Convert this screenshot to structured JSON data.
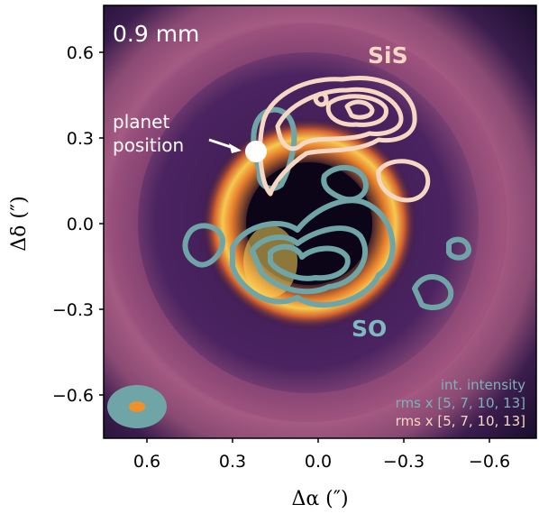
{
  "figure": {
    "wavelength_label": "0.9 mm",
    "planet_label_line1": "planet",
    "planet_label_line2": "position",
    "sis_label": "SiS",
    "so_label": "SO",
    "legend": {
      "title": "int. intensity",
      "so_levels": "rms x [5, 7, 10, 13]",
      "sis_levels": "rms x [5, 7, 10, 13]"
    },
    "x_axis": {
      "label": "Δα (″)",
      "ticks": [
        "0.6",
        "0.3",
        "0.0",
        "−0.3",
        "−0.6"
      ]
    },
    "y_axis": {
      "label": "Δδ (″)",
      "ticks": [
        "0.6",
        "0.3",
        "0.0",
        "−0.3",
        "−0.6"
      ]
    },
    "colors": {
      "sis_contour": "#f6d7c3",
      "so_contour": "#6fa5a7",
      "beam_outer": "#6fa5a7",
      "beam_inner": "#f0902a"
    }
  }
}
